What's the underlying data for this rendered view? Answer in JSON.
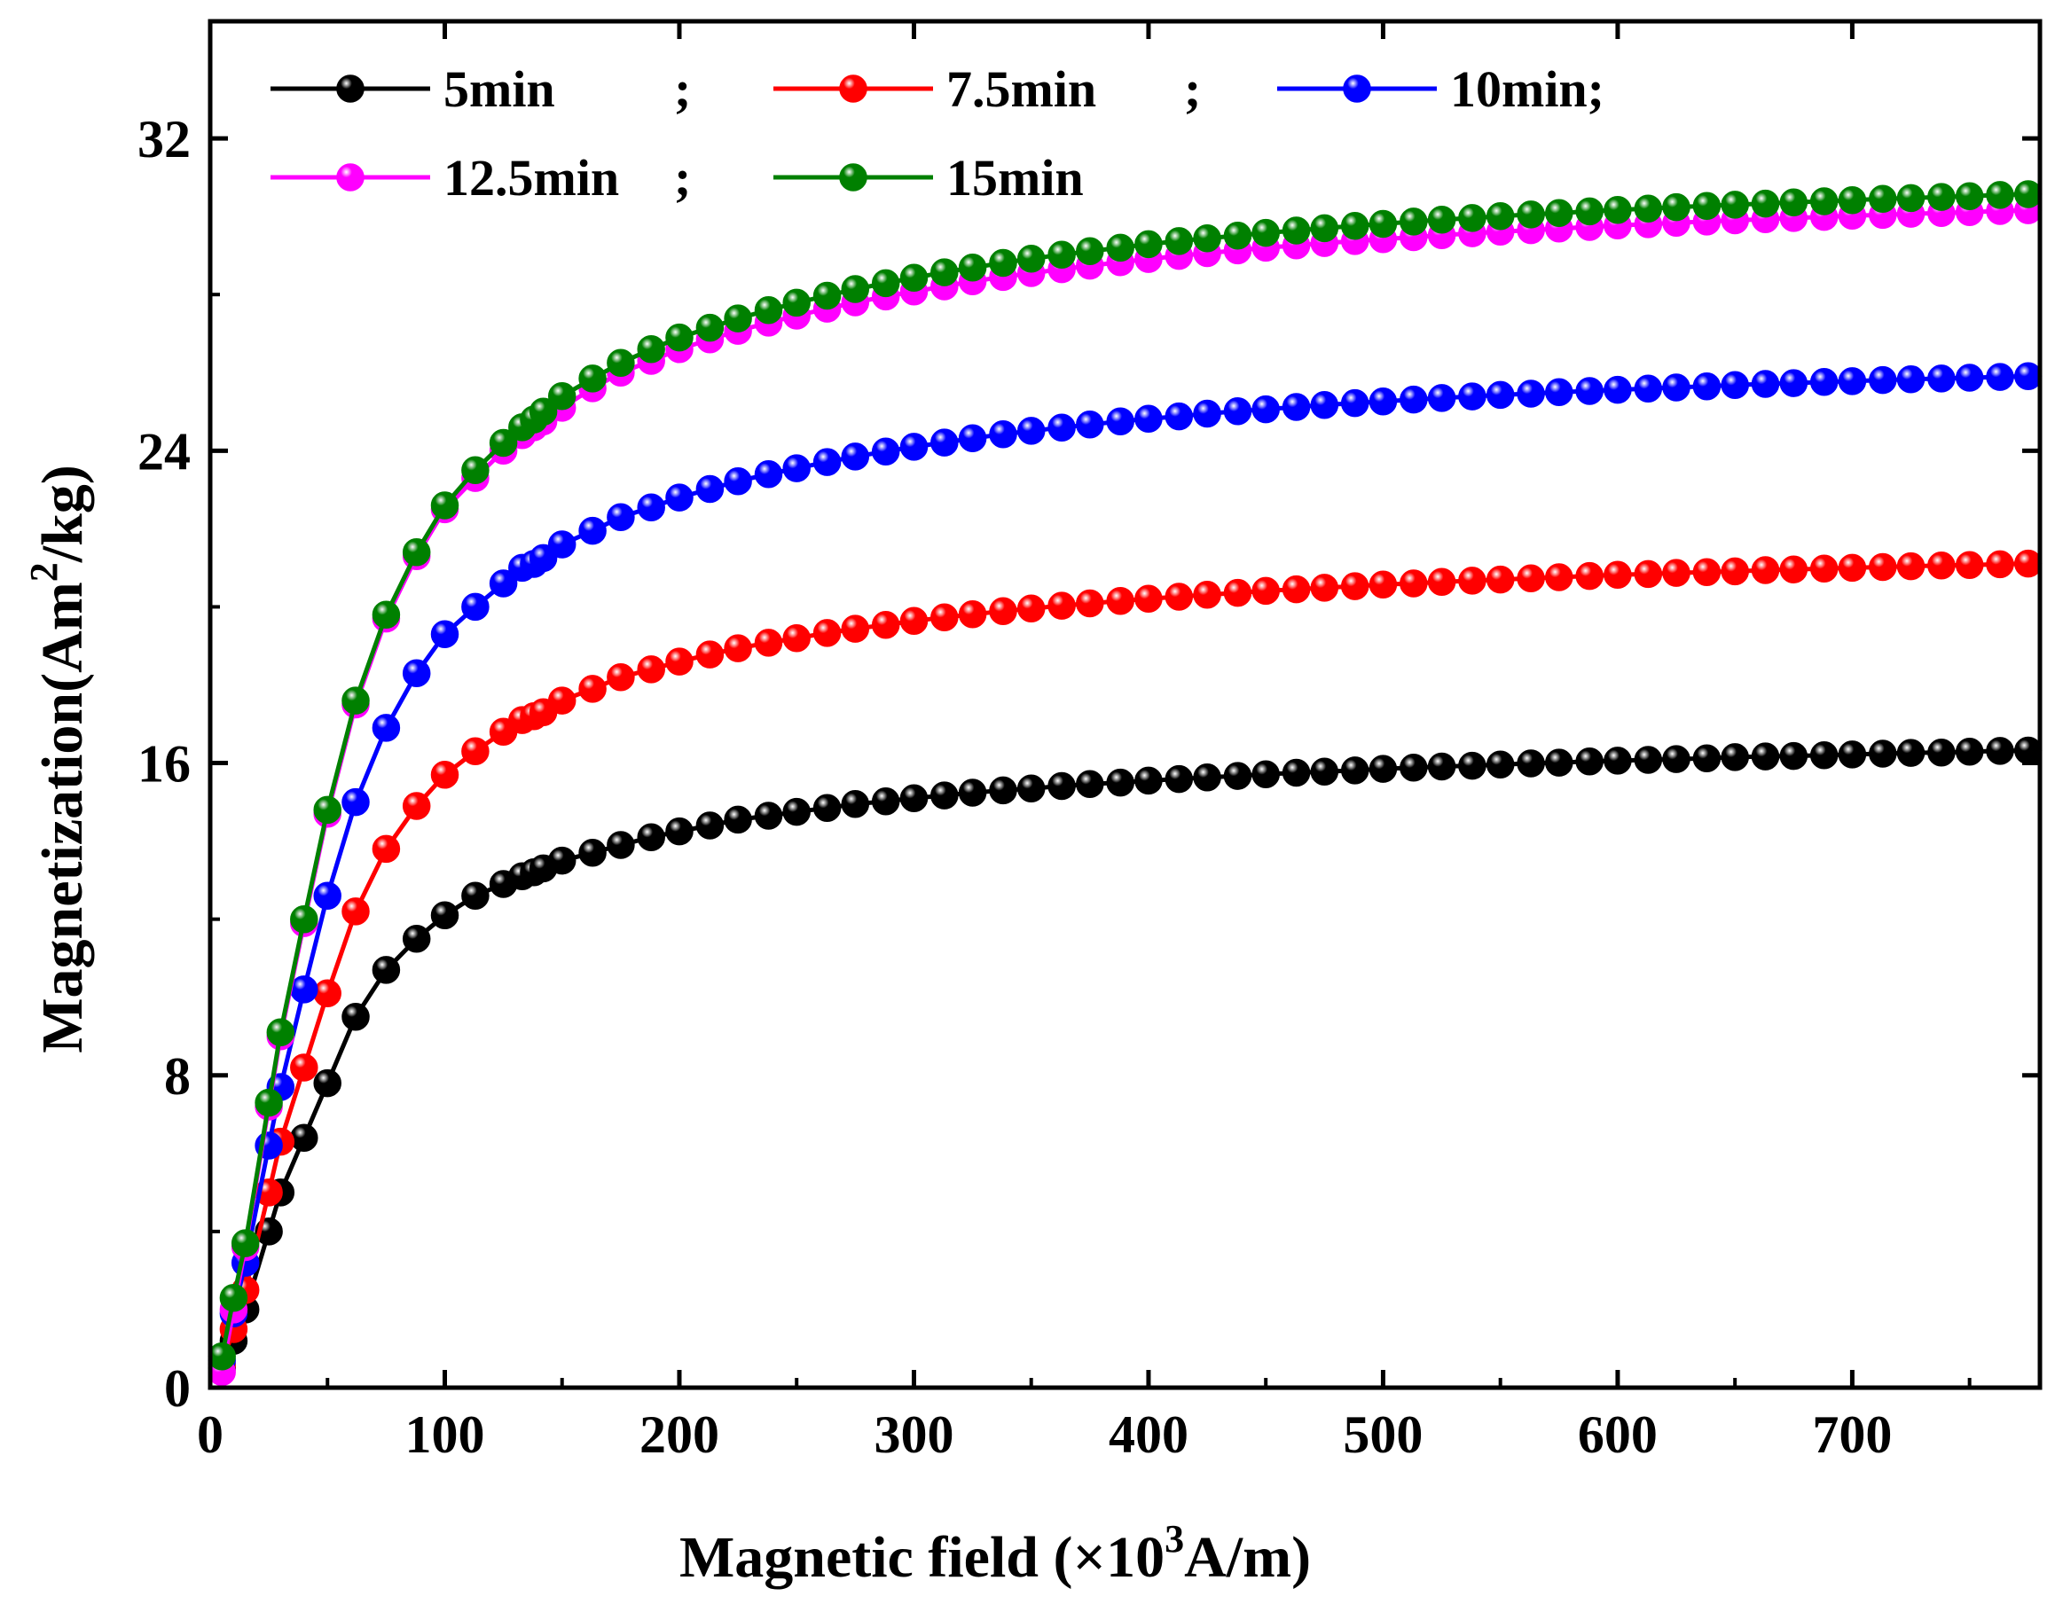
{
  "chart_data": {
    "type": "line",
    "title": "",
    "xlabel": "Magnetic field (×10³A/m)",
    "xlabel_parts": {
      "prefix": "Magnetic field (×10",
      "sup": "3",
      "suffix": "A/m)"
    },
    "ylabel": "Magnetization(Am²/kg)",
    "ylabel_parts": {
      "prefix": "Magnetization(Am",
      "sup": "2",
      "suffix": "/kg)"
    },
    "xlim": [
      0,
      780
    ],
    "ylim": [
      0,
      35
    ],
    "x_ticks": [
      0,
      100,
      200,
      300,
      400,
      500,
      600,
      700
    ],
    "y_ticks": [
      0,
      8,
      16,
      24,
      32
    ],
    "grid": false,
    "legend_position": "top-left",
    "x": [
      5,
      10,
      15,
      25,
      30,
      40,
      50,
      62,
      75,
      88,
      100,
      113,
      125,
      133,
      138,
      142,
      150,
      163,
      175,
      188,
      200,
      213,
      225,
      238,
      250,
      263,
      275,
      288,
      300,
      313,
      325,
      338,
      350,
      363,
      375,
      388,
      400,
      413,
      425,
      438,
      450,
      463,
      475,
      488,
      500,
      513,
      525,
      538,
      550,
      563,
      575,
      588,
      600,
      613,
      625,
      638,
      650,
      663,
      675,
      688,
      700,
      713,
      725,
      738,
      750,
      763,
      775
    ],
    "series": [
      {
        "name": "5min",
        "legend_label": "5min",
        "color": "#000000",
        "Ms": 16.5,
        "values": [
          0.5,
          1.2,
          2.0,
          4.0,
          5.0,
          6.4,
          7.8,
          9.5,
          10.7,
          11.5,
          12.1,
          12.6,
          12.9,
          13.1,
          13.2,
          13.3,
          13.5,
          13.7,
          13.9,
          14.1,
          14.25,
          14.4,
          14.55,
          14.65,
          14.75,
          14.85,
          14.95,
          15.02,
          15.1,
          15.17,
          15.24,
          15.3,
          15.35,
          15.41,
          15.46,
          15.5,
          15.55,
          15.59,
          15.63,
          15.67,
          15.71,
          15.75,
          15.78,
          15.81,
          15.85,
          15.88,
          15.91,
          15.93,
          15.96,
          15.99,
          16.01,
          16.04,
          16.06,
          16.08,
          16.1,
          16.12,
          16.15,
          16.17,
          16.18,
          16.2,
          16.22,
          16.24,
          16.26,
          16.27,
          16.29,
          16.31,
          16.32
        ]
      },
      {
        "name": "7.5min",
        "legend_label": "7.5min",
        "color": "#ff0000",
        "Ms": 21.4,
        "values": [
          0.6,
          1.5,
          2.5,
          5.0,
          6.3,
          8.2,
          10.1,
          12.2,
          13.8,
          14.9,
          15.7,
          16.3,
          16.8,
          17.1,
          17.2,
          17.3,
          17.6,
          17.9,
          18.2,
          18.4,
          18.6,
          18.78,
          18.94,
          19.08,
          19.2,
          19.33,
          19.44,
          19.54,
          19.64,
          19.73,
          19.81,
          19.89,
          19.96,
          20.03,
          20.09,
          20.15,
          20.21,
          20.26,
          20.31,
          20.36,
          20.41,
          20.45,
          20.49,
          20.53,
          20.57,
          20.6,
          20.64,
          20.67,
          20.7,
          20.73,
          20.76,
          20.79,
          20.82,
          20.84,
          20.87,
          20.89,
          20.91,
          20.94,
          20.96,
          20.98,
          21.0,
          21.02,
          21.04,
          21.06,
          21.07,
          21.09,
          21.11
        ]
      },
      {
        "name": "10min",
        "legend_label": "10min;",
        "color": "#0000ff",
        "Ms": 26.0,
        "values": [
          0.7,
          1.9,
          3.2,
          6.2,
          7.7,
          10.2,
          12.6,
          15.0,
          16.9,
          18.3,
          19.3,
          20.0,
          20.6,
          21.0,
          21.1,
          21.25,
          21.6,
          21.95,
          22.3,
          22.55,
          22.8,
          23.02,
          23.22,
          23.4,
          23.55,
          23.71,
          23.85,
          23.98,
          24.1,
          24.21,
          24.32,
          24.42,
          24.51,
          24.59,
          24.67,
          24.75,
          24.82,
          24.88,
          24.95,
          25.01,
          25.06,
          25.12,
          25.17,
          25.22,
          25.26,
          25.31,
          25.35,
          25.39,
          25.43,
          25.46,
          25.5,
          25.53,
          25.56,
          25.59,
          25.62,
          25.65,
          25.68,
          25.71,
          25.73,
          25.76,
          25.78,
          25.81,
          25.83,
          25.85,
          25.87,
          25.89,
          25.91
        ]
      },
      {
        "name": "12.5min",
        "legend_label": "12.5min",
        "color": "#ff00ff",
        "Ms": 30.3,
        "values": [
          0.4,
          2.0,
          3.6,
          7.2,
          9.0,
          11.9,
          14.7,
          17.5,
          19.7,
          21.3,
          22.5,
          23.3,
          24.0,
          24.4,
          24.6,
          24.75,
          25.1,
          25.6,
          26.0,
          26.3,
          26.6,
          26.85,
          27.07,
          27.28,
          27.46,
          27.64,
          27.8,
          27.95,
          28.08,
          28.21,
          28.34,
          28.45,
          28.55,
          28.65,
          28.74,
          28.83,
          28.91,
          28.99,
          29.06,
          29.13,
          29.2,
          29.26,
          29.32,
          29.37,
          29.42,
          29.47,
          29.52,
          29.57,
          29.61,
          29.65,
          29.69,
          29.73,
          29.77,
          29.8,
          29.84,
          29.87,
          29.9,
          29.93,
          29.96,
          29.99,
          30.02,
          30.04,
          30.07,
          30.09,
          30.11,
          30.14,
          30.16
        ]
      },
      {
        "name": "15min",
        "legend_label": "15min",
        "color": "#008000",
        "Ms": 31.0,
        "values": [
          0.8,
          2.3,
          3.7,
          7.3,
          9.1,
          12.0,
          14.8,
          17.6,
          19.8,
          21.4,
          22.6,
          23.5,
          24.2,
          24.6,
          24.8,
          25.0,
          25.4,
          25.85,
          26.25,
          26.6,
          26.9,
          27.15,
          27.39,
          27.6,
          27.79,
          27.97,
          28.14,
          28.29,
          28.43,
          28.57,
          28.69,
          28.81,
          28.92,
          29.02,
          29.11,
          29.2,
          29.29,
          29.37,
          29.44,
          29.51,
          29.58,
          29.64,
          29.7,
          29.76,
          29.81,
          29.87,
          29.92,
          29.96,
          30.01,
          30.05,
          30.09,
          30.13,
          30.17,
          30.2,
          30.24,
          30.27,
          30.3,
          30.33,
          30.36,
          30.39,
          30.42,
          30.45,
          30.47,
          30.5,
          30.52,
          30.55,
          30.57
        ]
      }
    ],
    "legend_separators": [
      ";",
      ";",
      "",
      ";",
      ""
    ]
  }
}
